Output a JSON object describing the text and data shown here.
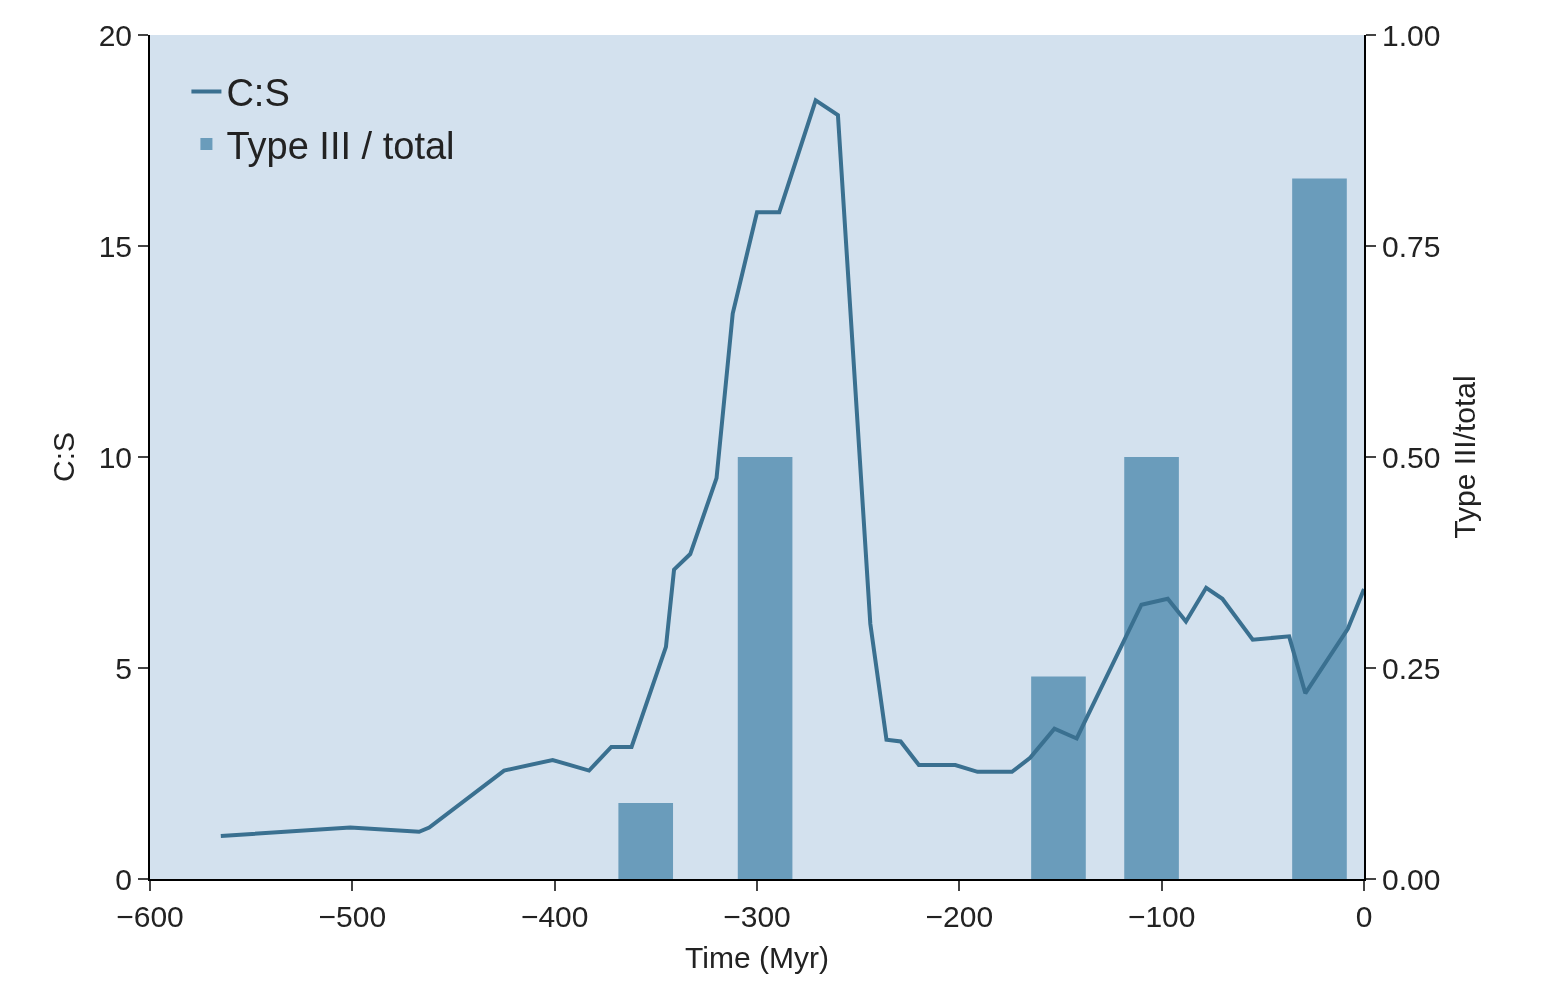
{
  "chart_data": {
    "type": "line",
    "xlabel": "Time (Myr)",
    "ylabel": "C:S",
    "y2label": "Type III/total",
    "xlim": [
      -600,
      0
    ],
    "xticks": [
      -600,
      -500,
      -400,
      -300,
      -200,
      -100,
      0
    ],
    "ylim": [
      0,
      20
    ],
    "yticks": [
      0,
      5,
      10,
      15,
      20
    ],
    "y2lim": [
      0,
      1
    ],
    "y2ticks": [
      {
        "value": 0,
        "label": "0.00"
      },
      0.25,
      {
        "value": 0.5,
        "label": "0.50"
      },
      0.75,
      {
        "value": 1,
        "label": "1.00"
      }
    ],
    "grid": false,
    "legend": "top left",
    "series": [
      {
        "name": "Type III / total",
        "type": "bar",
        "axis": "y2",
        "color": "#6a9cbb",
        "x": [
          -355,
          -296,
          -151,
          -105,
          -22
        ],
        "values": [
          0.09,
          0.5,
          0.24,
          0.5,
          0.83
        ]
      },
      {
        "name": "C:S",
        "color": "#3a7090",
        "x": [
          -565,
          -501,
          -467,
          -462,
          -425,
          -401,
          -383,
          -372,
          -362,
          -345,
          -341,
          -333,
          -320,
          -312,
          -300,
          -289,
          -271,
          -260,
          -244,
          -236,
          -229,
          -220,
          -202,
          -191,
          -174,
          -165,
          -153,
          -142,
          -110,
          -97,
          -88,
          -78,
          -70,
          -55,
          -37,
          -29,
          -8,
          0
        ],
        "values": [
          1.02,
          1.22,
          1.12,
          1.22,
          2.57,
          2.82,
          2.57,
          3.13,
          3.13,
          5.5,
          7.33,
          7.7,
          9.5,
          13.4,
          15.8,
          15.8,
          18.45,
          18.1,
          6.05,
          3.3,
          3.26,
          2.7,
          2.7,
          2.54,
          2.54,
          2.87,
          3.56,
          3.33,
          6.5,
          6.64,
          6.1,
          6.9,
          6.64,
          5.67,
          5.75,
          4.4,
          5.93,
          6.87
        ]
      }
    ]
  }
}
